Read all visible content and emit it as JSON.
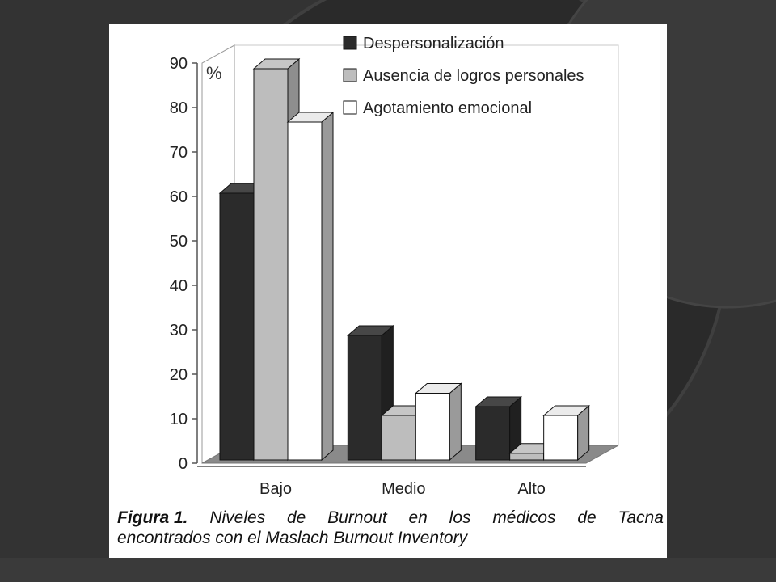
{
  "caption": {
    "label": "Figura 1.",
    "line1_words": [
      "Niveles",
      "de",
      "Burnout",
      "en",
      "los",
      "médicos",
      "de",
      "Tacna"
    ],
    "line2": "encontrados con  el Maslach Burnout Inventory"
  },
  "colors": {
    "slide_background": "#333333",
    "panel": "#ffffff"
  },
  "chart_data": {
    "type": "bar",
    "categories": [
      "Bajo",
      "Medio",
      "Alto"
    ],
    "series": [
      {
        "name": "Despersonalización",
        "values": [
          60,
          28,
          12
        ],
        "color": "#2b2b2b"
      },
      {
        "name": "Ausencia de logros personales",
        "values": [
          88,
          10,
          1.5
        ],
        "color": "#bdbdbd"
      },
      {
        "name": "Agotamiento emocional",
        "values": [
          76,
          15,
          10
        ],
        "color": "#ffffff"
      }
    ],
    "ylabel": "%",
    "ylim": [
      0,
      90
    ],
    "yticks": [
      0,
      10,
      20,
      30,
      40,
      50,
      60,
      70,
      80,
      90
    ],
    "legend": "top-right",
    "grid": false,
    "style": "3d-columns"
  }
}
